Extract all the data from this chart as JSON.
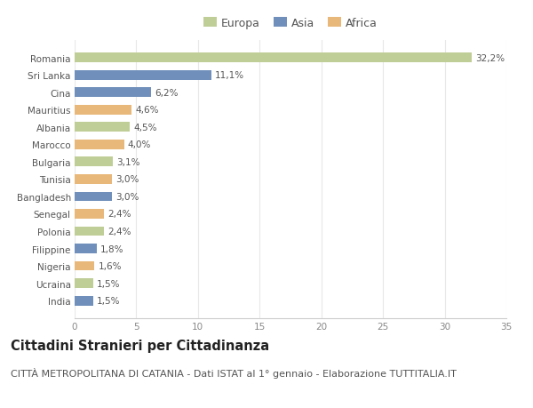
{
  "categories": [
    "India",
    "Ucraina",
    "Nigeria",
    "Filippine",
    "Polonia",
    "Senegal",
    "Bangladesh",
    "Tunisia",
    "Bulgaria",
    "Marocco",
    "Albania",
    "Mauritius",
    "Cina",
    "Sri Lanka",
    "Romania"
  ],
  "values": [
    1.5,
    1.5,
    1.6,
    1.8,
    2.4,
    2.4,
    3.0,
    3.0,
    3.1,
    4.0,
    4.5,
    4.6,
    6.2,
    11.1,
    32.2
  ],
  "labels": [
    "1,5%",
    "1,5%",
    "1,6%",
    "1,8%",
    "2,4%",
    "2,4%",
    "3,0%",
    "3,0%",
    "3,1%",
    "4,0%",
    "4,5%",
    "4,6%",
    "6,2%",
    "11,1%",
    "32,2%"
  ],
  "continents": [
    "Asia",
    "Europa",
    "Africa",
    "Asia",
    "Europa",
    "Africa",
    "Asia",
    "Africa",
    "Europa",
    "Africa",
    "Europa",
    "Africa",
    "Asia",
    "Asia",
    "Europa"
  ],
  "colors": {
    "Europa": "#bfce96",
    "Asia": "#7090bb",
    "Africa": "#e8b87a"
  },
  "xlim": [
    0,
    35
  ],
  "xticks": [
    0,
    5,
    10,
    15,
    20,
    25,
    30,
    35
  ],
  "title": "Cittadini Stranieri per Cittadinanza",
  "subtitle": "CITTÀ METROPOLITANA DI CATANIA - Dati ISTAT al 1° gennaio - Elaborazione TUTTITALIA.IT",
  "background_color": "#ffffff",
  "plot_background_color": "#ffffff",
  "grid_color": "#e8e8e8",
  "bar_height": 0.55,
  "title_fontsize": 10.5,
  "subtitle_fontsize": 8,
  "label_fontsize": 7.5,
  "tick_fontsize": 7.5,
  "legend_fontsize": 9
}
